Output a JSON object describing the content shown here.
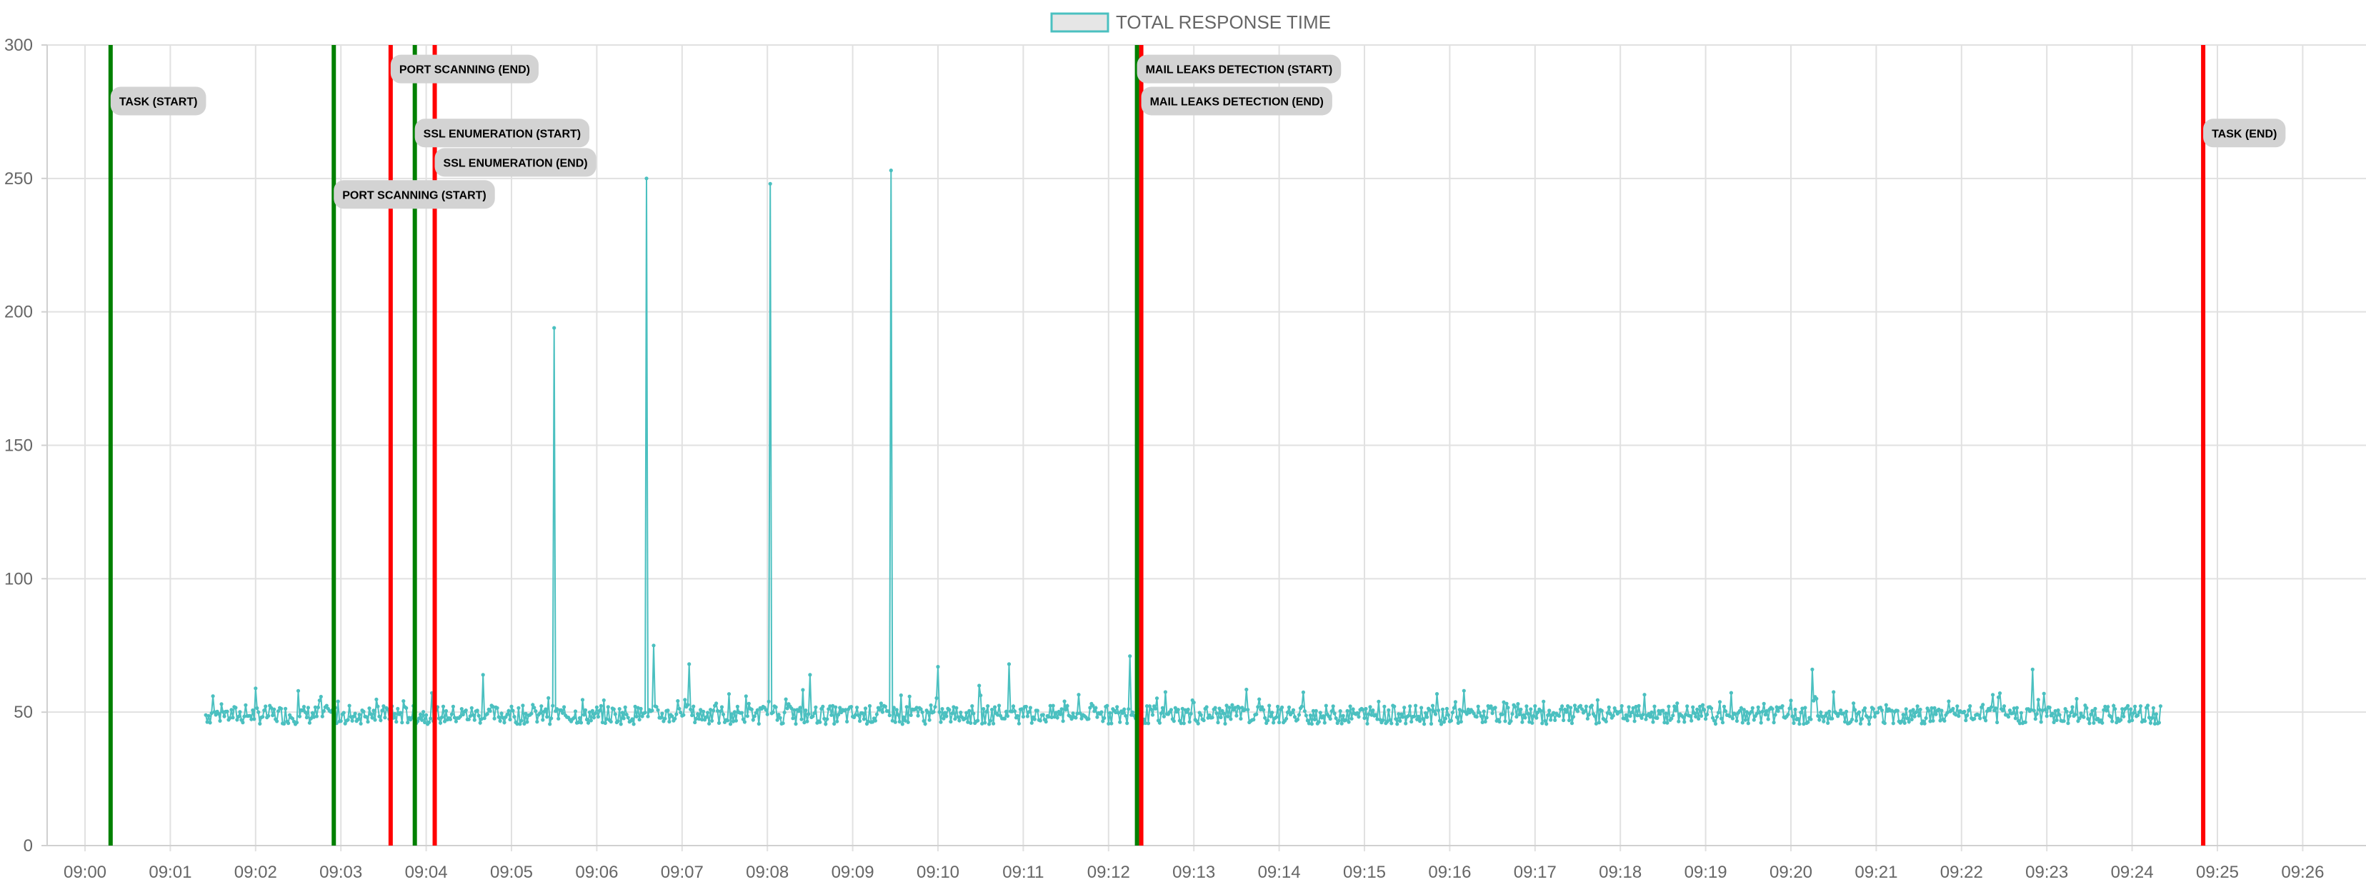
{
  "chart_data": {
    "type": "line",
    "title": "",
    "xlabel": "",
    "ylabel": "",
    "ylim": [
      0,
      300
    ],
    "yticks": [
      0,
      50,
      100,
      150,
      200,
      250,
      300
    ],
    "x_range": [
      "08:59.0",
      "09:26.0"
    ],
    "xticks": [
      "09:00",
      "09:01",
      "09:02",
      "09:03",
      "09:04",
      "09:05",
      "09:06",
      "09:07",
      "09:08",
      "09:09",
      "09:10",
      "09:11",
      "09:12",
      "09:13",
      "09:14",
      "09:15",
      "09:16",
      "09:17",
      "09:18",
      "09:19",
      "09:20",
      "09:21",
      "09:22",
      "09:23",
      "09:24",
      "09:25",
      "09:26"
    ],
    "grid": true,
    "legend_position": "top",
    "series": [
      {
        "name": "TOTAL RESPONSE TIME",
        "color": "#4bc0c0",
        "legend_fill": "#e6e6e6",
        "x_start": "09:01:25",
        "x_end": "09:24:20",
        "baseline_range": [
          44,
          66
        ],
        "peaks": [
          {
            "x": "09:01:30",
            "y": 56
          },
          {
            "x": "09:02:30",
            "y": 58
          },
          {
            "x": "09:04:40",
            "y": 64
          },
          {
            "x": "09:05:30",
            "y": 194
          },
          {
            "x": "09:06:35",
            "y": 250
          },
          {
            "x": "09:06:40",
            "y": 75
          },
          {
            "x": "09:07:05",
            "y": 68
          },
          {
            "x": "09:08:02",
            "y": 248
          },
          {
            "x": "09:08:30",
            "y": 64
          },
          {
            "x": "09:09:27",
            "y": 253
          },
          {
            "x": "09:10:00",
            "y": 67
          },
          {
            "x": "09:10:50",
            "y": 68
          },
          {
            "x": "09:12:15",
            "y": 71
          },
          {
            "x": "09:20:15",
            "y": 66
          },
          {
            "x": "09:22:50",
            "y": 66
          }
        ]
      }
    ],
    "annotations": [
      {
        "label": "TASK (START)",
        "x": "09:00:18",
        "color": "#008000",
        "label_y": 279
      },
      {
        "label": "PORT SCANNING (START)",
        "x": "09:02:55",
        "color": "#008000",
        "label_y": 244
      },
      {
        "label": "PORT SCANNING (END)",
        "x": "09:03:35",
        "color": "#ff0000",
        "label_y": 291
      },
      {
        "label": "SSL ENUMERATION (START)",
        "x": "09:03:52",
        "color": "#008000",
        "label_y": 267
      },
      {
        "label": "SSL ENUMERATION (END)",
        "x": "09:04:06",
        "color": "#ff0000",
        "label_y": 256
      },
      {
        "label": "MAIL LEAKS DETECTION (START)",
        "x": "09:12:20",
        "color": "#008000",
        "label_y": 291
      },
      {
        "label": "MAIL LEAKS DETECTION (END)",
        "x": "09:12:23",
        "color": "#ff0000",
        "label_y": 279
      },
      {
        "label": "TASK (END)",
        "x": "09:24:50",
        "color": "#ff0000",
        "label_y": 267
      }
    ]
  }
}
